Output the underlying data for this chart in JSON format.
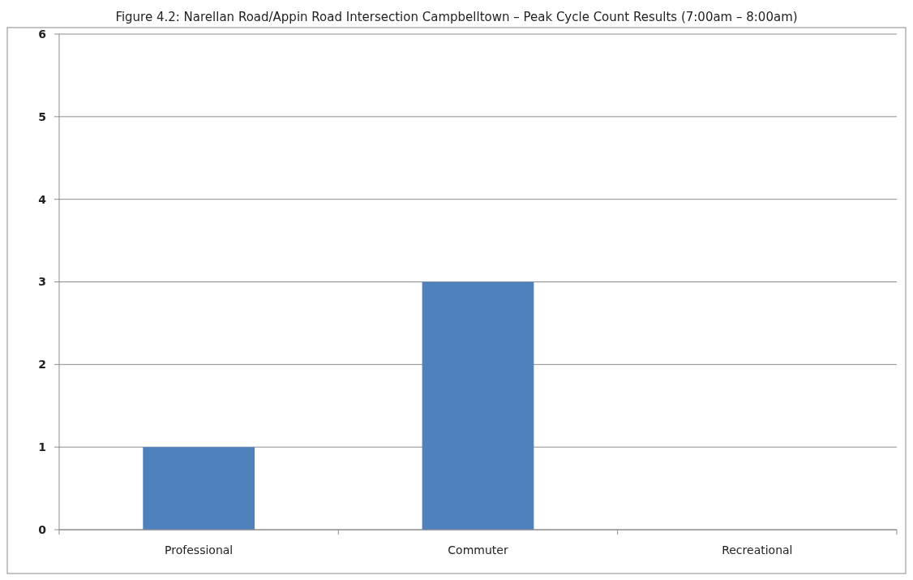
{
  "chart_data": {
    "type": "bar",
    "title": "Figure 4.2: Narellan Road/Appin Road Intersection Campbelltown – Peak Cycle Count Results (7:00am – 8:00am)",
    "categories": [
      "Professional",
      "Commuter",
      "Recreational"
    ],
    "values": [
      1,
      3,
      0
    ],
    "color": "#4f81bd",
    "ylim": [
      0,
      6
    ],
    "yticks": [
      0,
      1,
      2,
      3,
      4,
      5,
      6
    ],
    "grid": "y"
  }
}
